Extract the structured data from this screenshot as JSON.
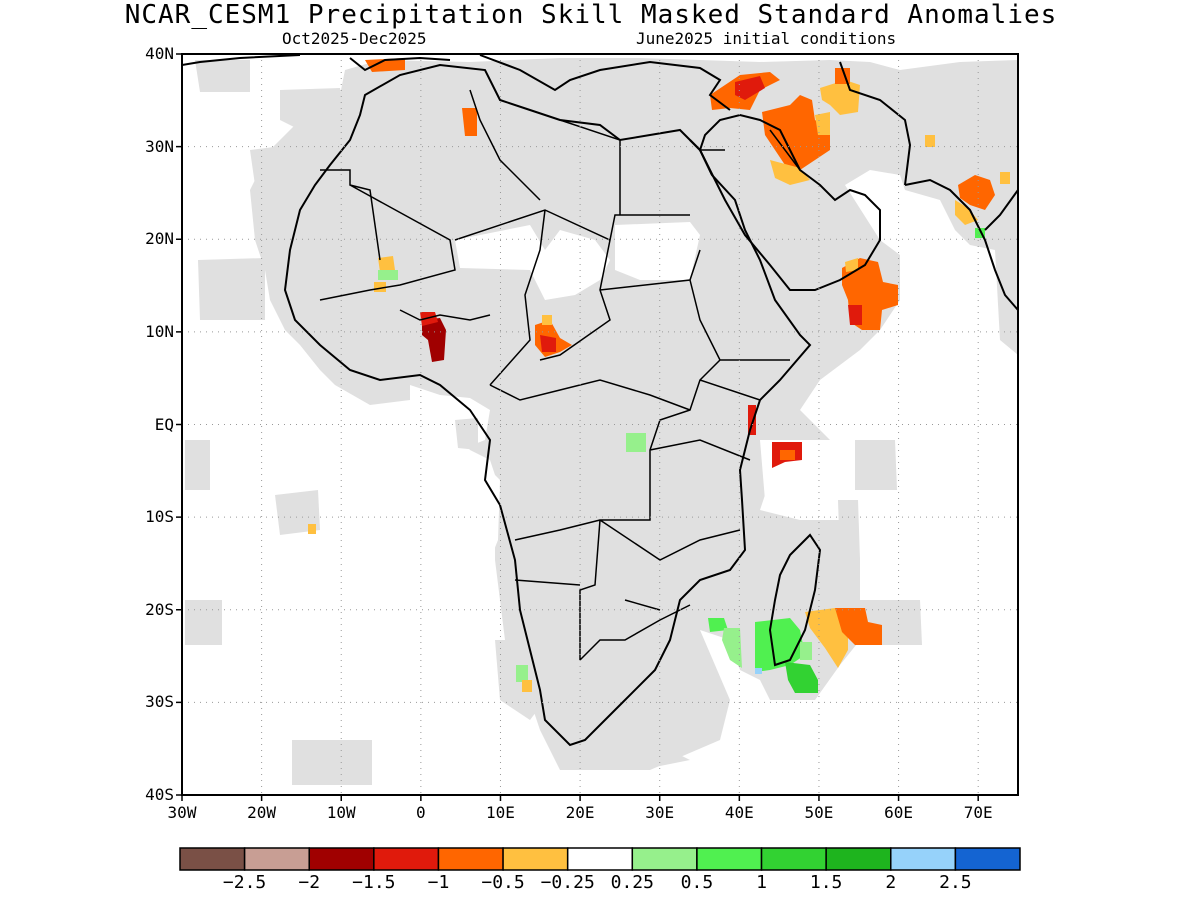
{
  "title": "NCAR_CESM1 Precipitation Skill Masked Standard Anomalies",
  "subtitle_left": "Oct2025-Dec2025",
  "subtitle_right": "June2025 initial conditions",
  "colors": {
    "masked_gray": "#e0e0e0",
    "land_outline": "#000000",
    "grid": "#999999"
  },
  "map": {
    "lon_range": [
      -30,
      75
    ],
    "lat_range": [
      -40,
      40
    ],
    "lat_labels": [
      "40N",
      "30N",
      "20N",
      "10N",
      "EQ",
      "10S",
      "20S",
      "30S",
      "40S"
    ],
    "lon_labels": [
      "30W",
      "20W",
      "10W",
      "0",
      "10E",
      "20E",
      "30E",
      "40E",
      "50E",
      "60E",
      "70E"
    ],
    "lat_ticks": [
      40,
      30,
      20,
      10,
      0,
      -10,
      -20,
      -30,
      -40
    ],
    "lon_ticks": [
      -30,
      -20,
      -10,
      0,
      10,
      20,
      30,
      40,
      50,
      60,
      70
    ]
  },
  "colorbar": {
    "colors": [
      "#7a5046",
      "#c89e94",
      "#a00000",
      "#e01a0c",
      "#ff6600",
      "#ffc040",
      "#ffffff",
      "#96f08c",
      "#50f050",
      "#32d232",
      "#1eb41e",
      "#96d2fa",
      "#1464d2"
    ],
    "labels": [
      "-2.5",
      "-2",
      "-1.5",
      "-1",
      "-0.5",
      "-0.25",
      "0.25",
      "0.5",
      "1",
      "1.5",
      "2",
      "2.5"
    ]
  }
}
